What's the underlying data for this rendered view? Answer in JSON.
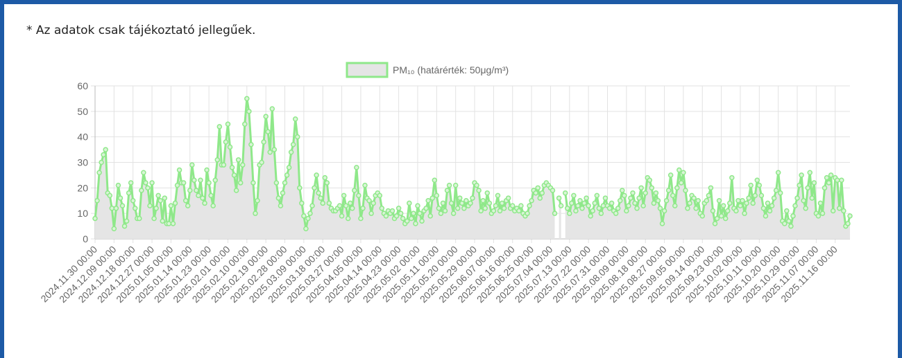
{
  "note_text": "* Az adatok csak tájékoztató jellegűek.",
  "chart_data": {
    "type": "line",
    "categories": [
      "2024.11.30 00:00",
      null,
      null,
      null,
      null,
      null,
      null,
      null,
      null,
      "2024.12.09 00:00",
      null,
      null,
      null,
      null,
      null,
      null,
      null,
      null,
      "2024.12.18 00:00",
      null,
      null,
      null,
      null,
      null,
      null,
      null,
      null,
      "2024.12.27 00:00",
      null,
      null,
      null,
      null,
      null,
      null,
      null,
      null,
      "2025.01.05 00:00",
      null,
      null,
      null,
      null,
      null,
      null,
      null,
      null,
      "2025.01.14 00:00",
      null,
      null,
      null,
      null,
      null,
      null,
      null,
      null,
      "2025.01.23 00:00",
      null,
      null,
      null,
      null,
      null,
      null,
      null,
      null,
      "2025.02.01 00:00",
      null,
      null,
      null,
      null,
      null,
      null,
      null,
      null,
      "2025.02.10 00:00",
      null,
      null,
      null,
      null,
      null,
      null,
      null,
      null,
      "2025.02.19 00:00",
      null,
      null,
      null,
      null,
      null,
      null,
      null,
      null,
      "2025.02.28 00:00",
      null,
      null,
      null,
      null,
      null,
      null,
      null,
      null,
      "2025.03.09 00:00",
      null,
      null,
      null,
      null,
      null,
      null,
      null,
      null,
      "2025.03.18 00:00",
      null,
      null,
      null,
      null,
      null,
      null,
      null,
      null,
      "2025.03.27 00:00",
      null,
      null,
      null,
      null,
      null,
      null,
      null,
      null,
      "2025.04.05 00:00",
      null,
      null,
      null,
      null,
      null,
      null,
      null,
      null,
      "2025.04.14 00:00",
      null,
      null,
      null,
      null,
      null,
      null,
      null,
      null,
      "2025.04.23 00:00",
      null,
      null,
      null,
      null,
      null,
      null,
      null,
      null,
      "2025.05.02 00:00",
      null,
      null,
      null,
      null,
      null,
      null,
      null,
      null,
      "2025.05.11 00:00",
      null,
      null,
      null,
      null,
      null,
      null,
      null,
      null,
      "2025.05.20 00:00",
      null,
      null,
      null,
      null,
      null,
      null,
      null,
      null,
      "2025.05.29 00:00",
      null,
      null,
      null,
      null,
      null,
      null,
      null,
      null,
      "2025.06.07 00:00",
      null,
      null,
      null,
      null,
      null,
      null,
      null,
      null,
      "2025.06.16 00:00",
      null,
      null,
      null,
      null,
      null,
      null,
      null,
      null,
      "2025.06.25 00:00",
      null,
      null,
      null,
      null,
      null,
      null,
      null,
      null,
      "2025.07.04 00:00",
      null,
      null,
      null,
      null,
      null,
      null,
      null,
      null,
      "2025.07.13 00:00",
      null,
      null,
      null,
      null,
      null,
      null,
      null,
      null,
      "2025.07.22 00:00",
      null,
      null,
      null,
      null,
      null,
      null,
      null,
      null,
      "2025.07.31 00:00",
      null,
      null,
      null,
      null,
      null,
      null,
      null,
      null,
      "2025.08.09 00:00",
      null,
      null,
      null,
      null,
      null,
      null,
      null,
      null,
      "2025.08.18 00:00",
      null,
      null,
      null,
      null,
      null,
      null,
      null,
      null,
      "2025.08.27 00:00",
      null,
      null,
      null,
      null,
      null,
      null,
      null,
      null,
      "2025.09.05 00:00",
      null,
      null,
      null,
      null,
      null,
      null,
      null,
      null,
      "2025.09.14 00:00",
      null,
      null,
      null,
      null,
      null,
      null,
      null,
      null,
      "2025.09.23 00:00",
      null,
      null,
      null,
      null,
      null,
      null,
      null,
      null,
      "2025.10.02 00:00",
      null,
      null,
      null,
      null,
      null,
      null,
      null,
      null,
      "2025.10.11 00:00",
      null,
      null,
      null,
      null,
      null,
      null,
      null,
      null,
      "2025.10.20 00:00",
      null,
      null,
      null,
      null,
      null,
      null,
      null,
      null,
      "2025.10.29 00:00",
      null,
      null,
      null,
      null,
      null,
      null,
      null,
      null,
      "2025.11.07 00:00",
      null,
      null,
      null,
      null,
      null,
      null,
      null,
      null,
      "2025.11.16 00:00",
      null,
      null,
      null,
      null,
      null,
      null,
      null
    ],
    "series": [
      {
        "name": "PM₁₀ (határérték: 50μg/m³)",
        "color": "#8fe88a",
        "fill": "#e5e5e5",
        "values": [
          8,
          15,
          26,
          30,
          33,
          35,
          18,
          17,
          12,
          4,
          12,
          21,
          16,
          13,
          5,
          7,
          18,
          22,
          15,
          12,
          8,
          8,
          19,
          26,
          22,
          20,
          13,
          22,
          8,
          12,
          17,
          15,
          7,
          16,
          6,
          6,
          13,
          6,
          14,
          21,
          27,
          22,
          22,
          15,
          13,
          19,
          29,
          23,
          19,
          17,
          23,
          16,
          14,
          27,
          22,
          17,
          13,
          23,
          31,
          44,
          29,
          29,
          38,
          45,
          36,
          28,
          25,
          19,
          31,
          22,
          29,
          45,
          55,
          50,
          37,
          22,
          10,
          15,
          29,
          30,
          38,
          48,
          42,
          34,
          51,
          35,
          22,
          16,
          13,
          18,
          22,
          25,
          28,
          34,
          37,
          47,
          40,
          20,
          14,
          9,
          4,
          8,
          10,
          13,
          20,
          25,
          18,
          16,
          14,
          24,
          22,
          14,
          12,
          11,
          11,
          12,
          13,
          9,
          17,
          13,
          8,
          14,
          12,
          19,
          28,
          17,
          8,
          12,
          21,
          16,
          15,
          10,
          14,
          17,
          18,
          17,
          12,
          10,
          9,
          11,
          10,
          11,
          8,
          9,
          12,
          10,
          8,
          6,
          7,
          14,
          8,
          10,
          6,
          13,
          10,
          7,
          11,
          12,
          15,
          9,
          16,
          23,
          17,
          12,
          10,
          14,
          11,
          19,
          21,
          14,
          10,
          21,
          12,
          16,
          14,
          12,
          15,
          13,
          14,
          16,
          22,
          21,
          19,
          11,
          15,
          12,
          18,
          14,
          10,
          11,
          13,
          17,
          11,
          14,
          12,
          15,
          16,
          12,
          13,
          11,
          12,
          11,
          13,
          10,
          9,
          10,
          13,
          15,
          19,
          18,
          20,
          16,
          18,
          21,
          22,
          21,
          20,
          19,
          10,
          null,
          16,
          13,
          null,
          18,
          12,
          10,
          14,
          17,
          11,
          13,
          15,
          12,
          14,
          16,
          13,
          9,
          11,
          14,
          17,
          12,
          10,
          13,
          16,
          13,
          12,
          14,
          11,
          10,
          12,
          15,
          19,
          17,
          11,
          13,
          16,
          18,
          14,
          12,
          16,
          20,
          13,
          18,
          24,
          23,
          20,
          14,
          18,
          15,
          12,
          6,
          11,
          15,
          19,
          25,
          17,
          13,
          20,
          27,
          22,
          26,
          19,
          12,
          14,
          17,
          16,
          12,
          15,
          10,
          9,
          14,
          15,
          17,
          20,
          11,
          6,
          8,
          15,
          9,
          13,
          8,
          11,
          14,
          24,
          12,
          11,
          15,
          13,
          15,
          10,
          14,
          16,
          21,
          14,
          17,
          23,
          21,
          17,
          12,
          9,
          14,
          11,
          13,
          16,
          19,
          26,
          18,
          7,
          6,
          11,
          7,
          5,
          9,
          13,
          16,
          21,
          25,
          15,
          12,
          20,
          26,
          16,
          22,
          10,
          9,
          14,
          10,
          20,
          24,
          22,
          25,
          11,
          24,
          23,
          12,
          23,
          11,
          5,
          6,
          9
        ]
      }
    ],
    "ylim": [
      0,
      60
    ],
    "yticks": [
      0,
      10,
      20,
      30,
      40,
      50,
      60
    ],
    "grid": true,
    "legend": "top"
  }
}
